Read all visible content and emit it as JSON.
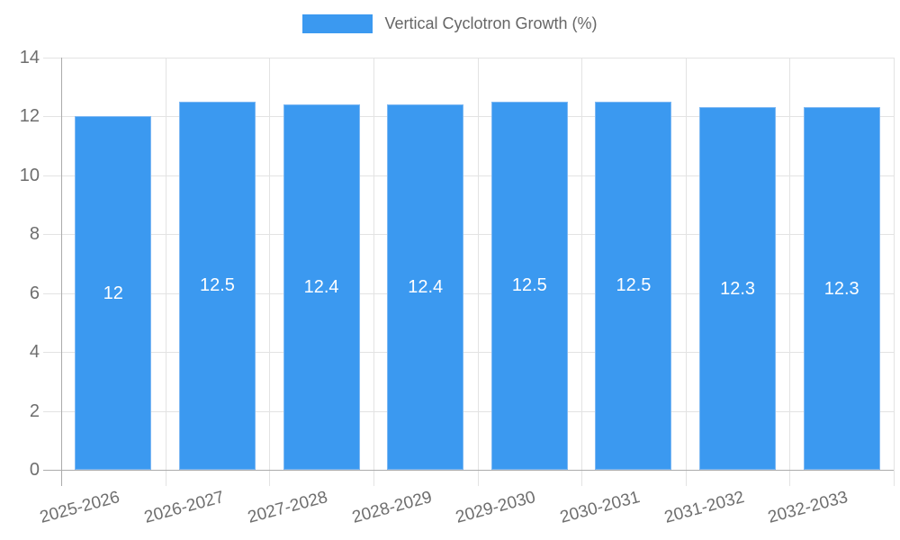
{
  "legend": {
    "label": "Vertical Cyclotron Growth (%)"
  },
  "colors": {
    "bar": "#3B99F0",
    "bar_border": "#7DB8F3",
    "grid": "#E3E3E3",
    "axis": "#ABABAB",
    "tick_text": "#6E6E6E",
    "value_label_text": "#FFFFFF",
    "legend_text": "#666666"
  },
  "chart_data": {
    "type": "bar",
    "title": "Vertical Cyclotron Growth (%)",
    "categories": [
      "2025-2026",
      "2026-2027",
      "2027-2028",
      "2028-2029",
      "2029-2030",
      "2030-2031",
      "2031-2032",
      "2032-2033"
    ],
    "values": [
      12,
      12.5,
      12.4,
      12.4,
      12.5,
      12.5,
      12.3,
      12.3
    ],
    "value_labels": [
      "12",
      "12.5",
      "12.4",
      "12.4",
      "12.5",
      "12.5",
      "12.3",
      "12.3"
    ],
    "xlabel": "",
    "ylabel": "",
    "ylim": [
      0,
      14
    ],
    "y_ticks": [
      0,
      2,
      4,
      6,
      8,
      10,
      12,
      14
    ],
    "grid": true,
    "legend_position": "top-center",
    "bar_value_labels": "centered-inside-white"
  }
}
